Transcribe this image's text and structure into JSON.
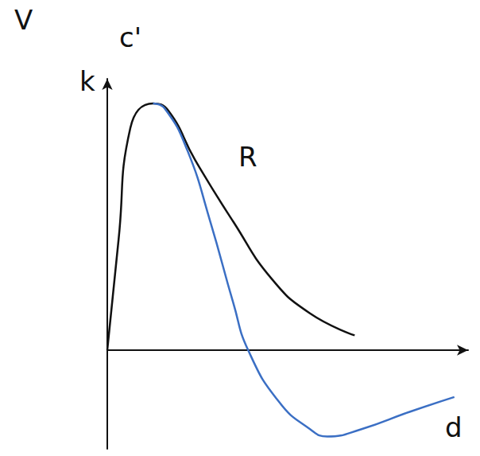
{
  "chart_data": {
    "type": "line",
    "annotations": [
      "V",
      "c'",
      "k",
      "R",
      "d"
    ],
    "xlim": [
      0,
      10.5
    ],
    "ylim": [
      -4,
      11
    ],
    "tick_labels": false,
    "grid": false,
    "series": [
      {
        "color": "#111111",
        "x": [
          0,
          0.33,
          0.67,
          1.33,
          1.78,
          2.56,
          3.67,
          4.78,
          5.89,
          7.2
        ],
        "values": [
          0,
          4.5,
          9,
          10,
          9.7,
          7.7,
          5.2,
          2.9,
          1.5,
          0.6
        ]
      },
      {
        "color": "#3b6fc4",
        "x": [
          1.33,
          1.67,
          2.33,
          3,
          3.67,
          4.1,
          5,
          5.9,
          6.4,
          7.4,
          8.8,
          10.1
        ],
        "values": [
          10,
          9.8,
          8.1,
          5.2,
          1.9,
          0,
          -2.1,
          -3.2,
          -3.5,
          -3.2,
          -2.5,
          -1.9
        ]
      }
    ]
  }
}
